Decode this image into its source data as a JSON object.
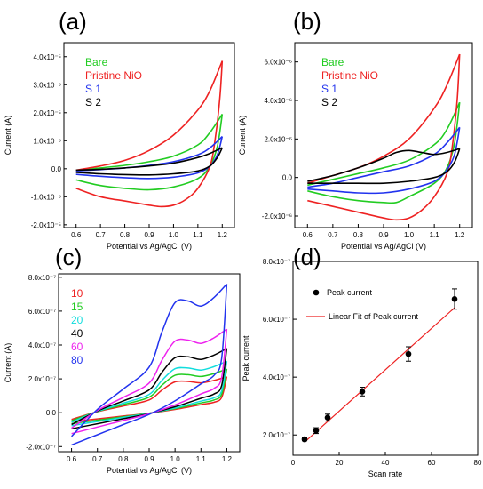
{
  "chart_data": [
    {
      "panel": "(a)",
      "type": "line",
      "xlabel": "Potential vs Ag/AgCl (V)",
      "ylabel": "Current (A)",
      "xlim": [
        0.55,
        1.25
      ],
      "ylim": [
        -2.1e-05,
        4.5e-05
      ],
      "xticks": [
        0.6,
        0.7,
        0.8,
        0.9,
        1.0,
        1.1,
        1.2
      ],
      "xtick_labels": [
        "0.6",
        "0.7",
        "0.8",
        "0.9",
        "1.0",
        "1.1",
        "1.2"
      ],
      "yticks": [
        -2e-05,
        -1e-05,
        0,
        1e-05,
        2e-05,
        3e-05,
        4e-05
      ],
      "ytick_labels": [
        "-2.0x10⁻⁵",
        "-1.0x10⁻⁵",
        "0.0",
        "1.0x10⁻⁵",
        "2.0x10⁻⁵",
        "3.0x10⁻⁵",
        "4.0x10⁻⁵"
      ],
      "legend_placement": "top-left",
      "series": [
        {
          "name": "Bare",
          "color": "#22cc22",
          "forward": [
            [
              0.6,
              -6e-07
            ],
            [
              0.7,
              3e-07
            ],
            [
              0.8,
              1.2e-06
            ],
            [
              0.9,
              2.5e-06
            ],
            [
              1.0,
              4.5e-06
            ],
            [
              1.1,
              8.5e-06
            ],
            [
              1.15,
              1.3e-05
            ],
            [
              1.2,
              1.95e-05
            ]
          ],
          "reverse": [
            [
              1.2,
              1.95e-05
            ],
            [
              1.18,
              8e-06
            ],
            [
              1.15,
              1e-06
            ],
            [
              1.1,
              -3.5e-06
            ],
            [
              1.0,
              -6.5e-06
            ],
            [
              0.9,
              -7.5e-06
            ],
            [
              0.8,
              -7e-06
            ],
            [
              0.7,
              -6e-06
            ],
            [
              0.6,
              -4e-06
            ]
          ]
        },
        {
          "name": "Pristine NiO",
          "color": "#ee2222",
          "forward": [
            [
              0.6,
              -5e-07
            ],
            [
              0.7,
              1e-06
            ],
            [
              0.8,
              3e-06
            ],
            [
              0.9,
              6.5e-06
            ],
            [
              1.0,
              1.2e-05
            ],
            [
              1.1,
              2.1e-05
            ],
            [
              1.15,
              2.8e-05
            ],
            [
              1.2,
              3.85e-05
            ]
          ],
          "reverse": [
            [
              1.2,
              3.85e-05
            ],
            [
              1.19,
              2.5e-05
            ],
            [
              1.17,
              1e-05
            ],
            [
              1.15,
              1e-06
            ],
            [
              1.1,
              -7e-06
            ],
            [
              1.05,
              -1.1e-05
            ],
            [
              1.0,
              -1.3e-05
            ],
            [
              0.95,
              -1.35e-05
            ],
            [
              0.9,
              -1.3e-05
            ],
            [
              0.8,
              -1.15e-05
            ],
            [
              0.7,
              -1e-05
            ],
            [
              0.6,
              -7e-06
            ]
          ]
        },
        {
          "name": "S 1",
          "color": "#2233ee",
          "forward": [
            [
              0.6,
              -8e-07
            ],
            [
              0.7,
              -3e-07
            ],
            [
              0.8,
              3e-07
            ],
            [
              0.9,
              1.2e-06
            ],
            [
              1.0,
              2.5e-06
            ],
            [
              1.1,
              5e-06
            ],
            [
              1.15,
              7.5e-06
            ],
            [
              1.2,
              1.15e-05
            ]
          ],
          "reverse": [
            [
              1.2,
              1.15e-05
            ],
            [
              1.18,
              5e-06
            ],
            [
              1.15,
              1e-06
            ],
            [
              1.1,
              -1.5e-06
            ],
            [
              1.0,
              -3e-06
            ],
            [
              0.9,
              -3.5e-06
            ],
            [
              0.8,
              -3.2e-06
            ],
            [
              0.7,
              -2.7e-06
            ],
            [
              0.6,
              -2e-06
            ]
          ]
        },
        {
          "name": "S 2",
          "color": "#000000",
          "forward": [
            [
              0.6,
              -5e-07
            ],
            [
              0.7,
              -2e-07
            ],
            [
              0.8,
              3e-07
            ],
            [
              0.9,
              1e-06
            ],
            [
              1.0,
              2e-06
            ],
            [
              1.1,
              4e-06
            ],
            [
              1.15,
              5.5e-06
            ],
            [
              1.2,
              7.5e-06
            ]
          ],
          "reverse": [
            [
              1.2,
              7.5e-06
            ],
            [
              1.18,
              4e-06
            ],
            [
              1.15,
              1e-06
            ],
            [
              1.1,
              -8e-07
            ],
            [
              1.0,
              -1.8e-06
            ],
            [
              0.9,
              -2.2e-06
            ],
            [
              0.8,
              -2.1e-06
            ],
            [
              0.7,
              -1.8e-06
            ],
            [
              0.6,
              -1.3e-06
            ]
          ]
        }
      ]
    },
    {
      "panel": "(b)",
      "type": "line",
      "xlabel": "Potential vs Ag/AgCl (V)",
      "ylabel": "Current (A)",
      "xlim": [
        0.55,
        1.25
      ],
      "ylim": [
        -2.6e-06,
        7e-06
      ],
      "xticks": [
        0.6,
        0.7,
        0.8,
        0.9,
        1.0,
        1.1,
        1.2
      ],
      "xtick_labels": [
        "0.6",
        "0.7",
        "0.8",
        "0.9",
        "1.0",
        "1.1",
        "1.2"
      ],
      "yticks": [
        -2e-06,
        0,
        2e-06,
        4e-06,
        6e-06
      ],
      "ytick_labels": [
        "-2.0x10⁻⁶",
        "0.0",
        "2.0x10⁻⁶",
        "4.0x10⁻⁶",
        "6.0x10⁻⁶"
      ],
      "legend_placement": "top-left",
      "series": [
        {
          "name": "Bare",
          "color": "#22cc22",
          "forward": [
            [
              0.6,
              -4e-07
            ],
            [
              0.7,
              -1e-07
            ],
            [
              0.8,
              2e-07
            ],
            [
              0.9,
              5e-07
            ],
            [
              1.0,
              9e-07
            ],
            [
              1.1,
              1.7e-06
            ],
            [
              1.15,
              2.5e-06
            ],
            [
              1.2,
              3.9e-06
            ]
          ],
          "reverse": [
            [
              1.2,
              3.9e-06
            ],
            [
              1.18,
              1.8e-06
            ],
            [
              1.15,
              5e-07
            ],
            [
              1.1,
              -3e-07
            ],
            [
              1.0,
              -1e-06
            ],
            [
              0.95,
              -1.3e-06
            ],
            [
              0.9,
              -1.3e-06
            ],
            [
              0.8,
              -1.2e-06
            ],
            [
              0.7,
              -1e-06
            ],
            [
              0.6,
              -7e-07
            ]
          ]
        },
        {
          "name": "Pristine NiO",
          "color": "#ee2222",
          "forward": [
            [
              0.6,
              -3e-07
            ],
            [
              0.7,
              1e-07
            ],
            [
              0.8,
              5e-07
            ],
            [
              0.9,
              1.1e-06
            ],
            [
              1.0,
              2e-06
            ],
            [
              1.1,
              3.6e-06
            ],
            [
              1.15,
              4.8e-06
            ],
            [
              1.2,
              6.4e-06
            ]
          ],
          "reverse": [
            [
              1.2,
              6.4e-06
            ],
            [
              1.19,
              4e-06
            ],
            [
              1.17,
              1.5e-06
            ],
            [
              1.15,
              2e-07
            ],
            [
              1.1,
              -1e-06
            ],
            [
              1.05,
              -1.7e-06
            ],
            [
              1.0,
              -2.1e-06
            ],
            [
              0.95,
              -2.2e-06
            ],
            [
              0.9,
              -2.1e-06
            ],
            [
              0.8,
              -1.8e-06
            ],
            [
              0.7,
              -1.5e-06
            ],
            [
              0.6,
              -1.2e-06
            ]
          ]
        },
        {
          "name": "S 1",
          "color": "#2233ee",
          "forward": [
            [
              0.6,
              -5e-07
            ],
            [
              0.7,
              -3e-07
            ],
            [
              0.8,
              0.0
            ],
            [
              0.9,
              3e-07
            ],
            [
              1.0,
              6e-07
            ],
            [
              1.1,
              1.2e-06
            ],
            [
              1.15,
              1.8e-06
            ],
            [
              1.2,
              2.6e-06
            ]
          ],
          "reverse": [
            [
              1.2,
              2.6e-06
            ],
            [
              1.18,
              1.2e-06
            ],
            [
              1.15,
              4e-07
            ],
            [
              1.1,
              -2e-07
            ],
            [
              1.0,
              -6e-07
            ],
            [
              0.9,
              -8e-07
            ],
            [
              0.8,
              -8e-07
            ],
            [
              0.7,
              -7e-07
            ],
            [
              0.6,
              -6e-07
            ]
          ]
        },
        {
          "name": "S 2",
          "color": "#000000",
          "forward": [
            [
              0.6,
              -2e-07
            ],
            [
              0.7,
              1e-07
            ],
            [
              0.8,
              5e-07
            ],
            [
              0.9,
              1e-06
            ],
            [
              0.95,
              1.3e-06
            ],
            [
              1.0,
              1.4e-06
            ],
            [
              1.05,
              1.3e-06
            ],
            [
              1.1,
              1.2e-06
            ],
            [
              1.15,
              1.3e-06
            ],
            [
              1.2,
              1.5e-06
            ]
          ],
          "reverse": [
            [
              1.2,
              1.5e-06
            ],
            [
              1.18,
              8e-07
            ],
            [
              1.15,
              3e-07
            ],
            [
              1.1,
              0.0
            ],
            [
              1.0,
              -2e-07
            ],
            [
              0.9,
              -3e-07
            ],
            [
              0.8,
              -3e-07
            ],
            [
              0.7,
              -3e-07
            ],
            [
              0.6,
              -3e-07
            ]
          ]
        }
      ]
    },
    {
      "panel": "(c)",
      "type": "line",
      "xlabel": "Potential vs Ag/AgCl (V)",
      "ylabel": "Current (A)",
      "xlim": [
        0.55,
        1.25
      ],
      "ylim": [
        -2.3e-07,
        8.2e-07
      ],
      "xticks": [
        0.6,
        0.7,
        0.8,
        0.9,
        1.0,
        1.1,
        1.2
      ],
      "xtick_labels": [
        "0.6",
        "0.7",
        "0.8",
        "0.9",
        "1.0",
        "1.1",
        "1.2"
      ],
      "yticks": [
        -2e-07,
        0,
        2e-07,
        4e-07,
        6e-07,
        8e-07
      ],
      "ytick_labels": [
        "-2.0x10⁻⁷",
        "0.0",
        "2.0x10⁻⁷",
        "4.0x10⁻⁷",
        "6.0x10⁻⁷",
        "8.0x10⁻⁷"
      ],
      "legend_placement": "top-left",
      "series": [
        {
          "name": "10",
          "color": "#ee2222",
          "scale": 0.28
        },
        {
          "name": "15",
          "color": "#22cc22",
          "scale": 0.34
        },
        {
          "name": "20",
          "color": "#11dddd",
          "scale": 0.4
        },
        {
          "name": "40",
          "color": "#000000",
          "scale": 0.5
        },
        {
          "name": "60",
          "color": "#ee22ee",
          "scale": 0.65
        },
        {
          "name": "80",
          "color": "#2233ee",
          "scale": 1.0
        }
      ],
      "base_forward": [
        [
          0.6,
          -1.4e-07
        ],
        [
          0.7,
          2e-08
        ],
        [
          0.8,
          1.4e-07
        ],
        [
          0.9,
          2.7e-07
        ],
        [
          0.95,
          4.8e-07
        ],
        [
          1.0,
          6.5e-07
        ],
        [
          1.05,
          6.6e-07
        ],
        [
          1.1,
          6.3e-07
        ],
        [
          1.15,
          6.8e-07
        ],
        [
          1.2,
          7.6e-07
        ]
      ],
      "base_reverse": [
        [
          1.2,
          7.6e-07
        ],
        [
          1.18,
          3.2e-07
        ],
        [
          1.15,
          2.2e-07
        ],
        [
          1.1,
          1.7e-07
        ],
        [
          1.0,
          7e-08
        ],
        [
          0.9,
          -1e-08
        ],
        [
          0.8,
          -7e-08
        ],
        [
          0.7,
          -1.3e-07
        ],
        [
          0.6,
          -1.9e-07
        ]
      ]
    },
    {
      "panel": "(d)",
      "type": "scatter",
      "xlabel": "Scan rate",
      "ylabel": "Peak current",
      "xlim": [
        0,
        80
      ],
      "ylim": [
        1.3e-07,
        8e-07
      ],
      "xticks": [
        0,
        20,
        40,
        60,
        80
      ],
      "xtick_labels": [
        "0",
        "20",
        "40",
        "60",
        "80"
      ],
      "yticks": [
        2e-07,
        4e-07,
        6e-07,
        8e-07
      ],
      "ytick_labels": [
        "2.0x10⁻⁷",
        "4.0x10⁻⁷",
        "6.0x10⁻⁷",
        "8.0x10⁻⁷"
      ],
      "legend_placement": "top-left",
      "points": {
        "name": "Peak current",
        "x": [
          5,
          10,
          15,
          30,
          50,
          70
        ],
        "y": [
          1.85e-07,
          2.15e-07,
          2.6e-07,
          3.5e-07,
          4.8e-07,
          6.7e-07
        ],
        "err": [
          5e-09,
          1e-08,
          1.2e-08,
          1.5e-08,
          2.5e-08,
          3.5e-08
        ]
      },
      "fit": {
        "name": "Linear Fit of Peak current",
        "color": "#ee2222",
        "x": [
          5,
          70
        ],
        "y": [
          1.75e-07,
          6.4e-07
        ]
      }
    }
  ]
}
